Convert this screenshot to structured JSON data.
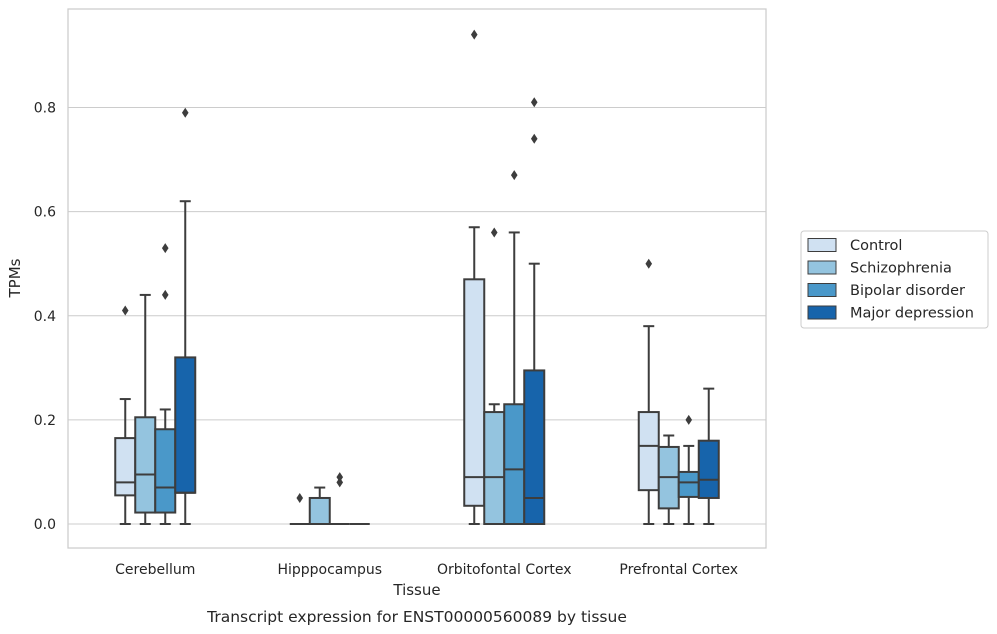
{
  "chart_data": {
    "type": "box",
    "ylabel": "TPMs",
    "xlabel": "Tissue",
    "caption": "Transcript expression for ENST00000560089 by tissue",
    "ylim": [
      -0.045,
      0.99
    ],
    "yticks": [
      "0.0",
      "0.2",
      "0.4",
      "0.6",
      "0.8"
    ],
    "grid": "horizontal",
    "legend_position": "right",
    "categories": [
      "Cerebellum",
      "Hipppocampus",
      "Orbitofontal Cortex",
      "Prefrontal Cortex"
    ],
    "series": [
      {
        "name": "Control",
        "color": "#d0e1f2",
        "boxes": [
          {
            "whislo": 0.0,
            "q1": 0.055,
            "med": 0.08,
            "q3": 0.165,
            "whishi": 0.24,
            "fliers": [
              0.41
            ]
          },
          {
            "whislo": 0.0,
            "q1": 0.0,
            "med": 0.0,
            "q3": 0.0,
            "whishi": 0.0,
            "fliers": [
              0.05
            ]
          },
          {
            "whislo": 0.0,
            "q1": 0.035,
            "med": 0.09,
            "q3": 0.47,
            "whishi": 0.57,
            "fliers": [
              0.94
            ]
          },
          {
            "whislo": 0.0,
            "q1": 0.065,
            "med": 0.15,
            "q3": 0.215,
            "whishi": 0.38,
            "fliers": [
              0.5
            ]
          }
        ]
      },
      {
        "name": "Schizophrenia",
        "color": "#94c4df",
        "boxes": [
          {
            "whislo": 0.0,
            "q1": 0.022,
            "med": 0.095,
            "q3": 0.205,
            "whishi": 0.44,
            "fliers": []
          },
          {
            "whislo": 0.0,
            "q1": 0.0,
            "med": 0.0,
            "q3": 0.05,
            "whishi": 0.07,
            "fliers": []
          },
          {
            "whislo": 0.0,
            "q1": 0.0,
            "med": 0.09,
            "q3": 0.215,
            "whishi": 0.23,
            "fliers": [
              0.56
            ]
          },
          {
            "whislo": 0.0,
            "q1": 0.03,
            "med": 0.09,
            "q3": 0.148,
            "whishi": 0.17,
            "fliers": []
          }
        ]
      },
      {
        "name": "Bipolar disorder",
        "color": "#4a98c9",
        "boxes": [
          {
            "whislo": 0.0,
            "q1": 0.022,
            "med": 0.07,
            "q3": 0.182,
            "whishi": 0.22,
            "fliers": [
              0.44,
              0.53
            ]
          },
          {
            "whislo": 0.0,
            "q1": 0.0,
            "med": 0.0,
            "q3": 0.0,
            "whishi": 0.0,
            "fliers": [
              0.08,
              0.09
            ]
          },
          {
            "whislo": 0.0,
            "q1": 0.0,
            "med": 0.105,
            "q3": 0.23,
            "whishi": 0.56,
            "fliers": [
              0.67
            ]
          },
          {
            "whislo": 0.0,
            "q1": 0.052,
            "med": 0.08,
            "q3": 0.1,
            "whishi": 0.15,
            "fliers": [
              0.2
            ]
          }
        ]
      },
      {
        "name": "Major depression",
        "color": "#1764ab",
        "boxes": [
          {
            "whislo": 0.0,
            "q1": 0.06,
            "med": 0.06,
            "q3": 0.32,
            "whishi": 0.62,
            "fliers": [
              0.79
            ]
          },
          {
            "whislo": 0.0,
            "q1": 0.0,
            "med": 0.0,
            "q3": 0.0,
            "whishi": 0.0,
            "fliers": []
          },
          {
            "whislo": 0.0,
            "q1": 0.0,
            "med": 0.05,
            "q3": 0.295,
            "whishi": 0.5,
            "fliers": [
              0.74,
              0.81
            ]
          },
          {
            "whislo": 0.0,
            "q1": 0.05,
            "med": 0.085,
            "q3": 0.16,
            "whishi": 0.26,
            "fliers": []
          }
        ]
      }
    ]
  }
}
